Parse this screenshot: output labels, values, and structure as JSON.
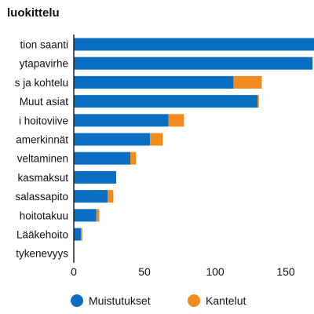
{
  "chart_data": {
    "type": "bar",
    "stacked": true,
    "orientation": "horizontal",
    "title": "luokittelu",
    "categories": [
      "tion saanti",
      "ytapavirhe",
      "s ja kohtelu",
      "Muut asiat",
      "i hoitoviive",
      "amerkinnät",
      "veltaminen",
      "kasmaksut",
      "salassapito",
      "hoitotakuu",
      "Lääkehoito",
      "tykenevyys"
    ],
    "series": [
      {
        "name": "Muistutukset",
        "color": "#0a6fc2",
        "values": [
          172,
          169,
          113,
          130,
          67,
          54,
          40,
          30,
          24,
          16,
          5,
          0
        ]
      },
      {
        "name": "Kantelut",
        "color": "#f28b1e",
        "values": [
          0,
          0,
          20,
          1,
          11,
          9,
          4,
          0,
          4,
          2,
          1,
          0
        ]
      }
    ],
    "xticks": [
      0,
      50,
      100,
      150
    ],
    "xlim": [
      0,
      170
    ],
    "grid": false,
    "legend_position": "bottom"
  }
}
